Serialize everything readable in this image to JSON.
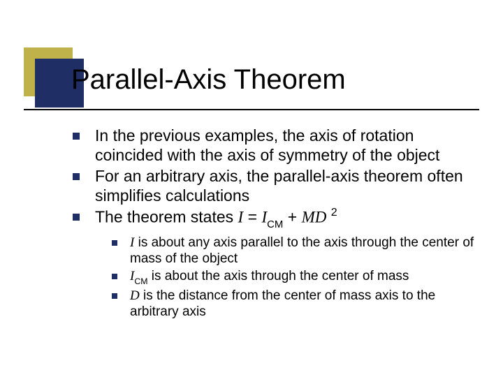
{
  "colors": {
    "accent_khaki": "#bfb24a",
    "accent_navy": "#1f2f66",
    "bullet_navy": "#1f2f66",
    "text": "#000000",
    "underline": "#000000",
    "background": "#ffffff"
  },
  "title": "Parallel-Axis Theorem",
  "bullets": [
    {
      "text": "In the previous examples, the axis of rotation coincided with the axis of symmetry of the object"
    },
    {
      "text": "For an arbitrary axis, the parallel-axis theorem often simplifies calculations"
    },
    {
      "prefix": "The theorem states ",
      "formula_I": "I",
      "eq": " = ",
      "formula_ICM_I": "I",
      "formula_ICM_sub": "CM",
      "plus": " + ",
      "formula_MD": "MD",
      "space": " ",
      "formula_sq": "2"
    }
  ],
  "subbullets": [
    {
      "sym": "I",
      "rest": " is about any axis parallel to the axis through the center of mass of the object"
    },
    {
      "sym_I": "I",
      "sym_sub": "CM",
      "rest": " is about the axis through the center of mass"
    },
    {
      "sym": "D",
      "rest": " is the distance from the center of mass axis to the arbitrary axis"
    }
  ]
}
